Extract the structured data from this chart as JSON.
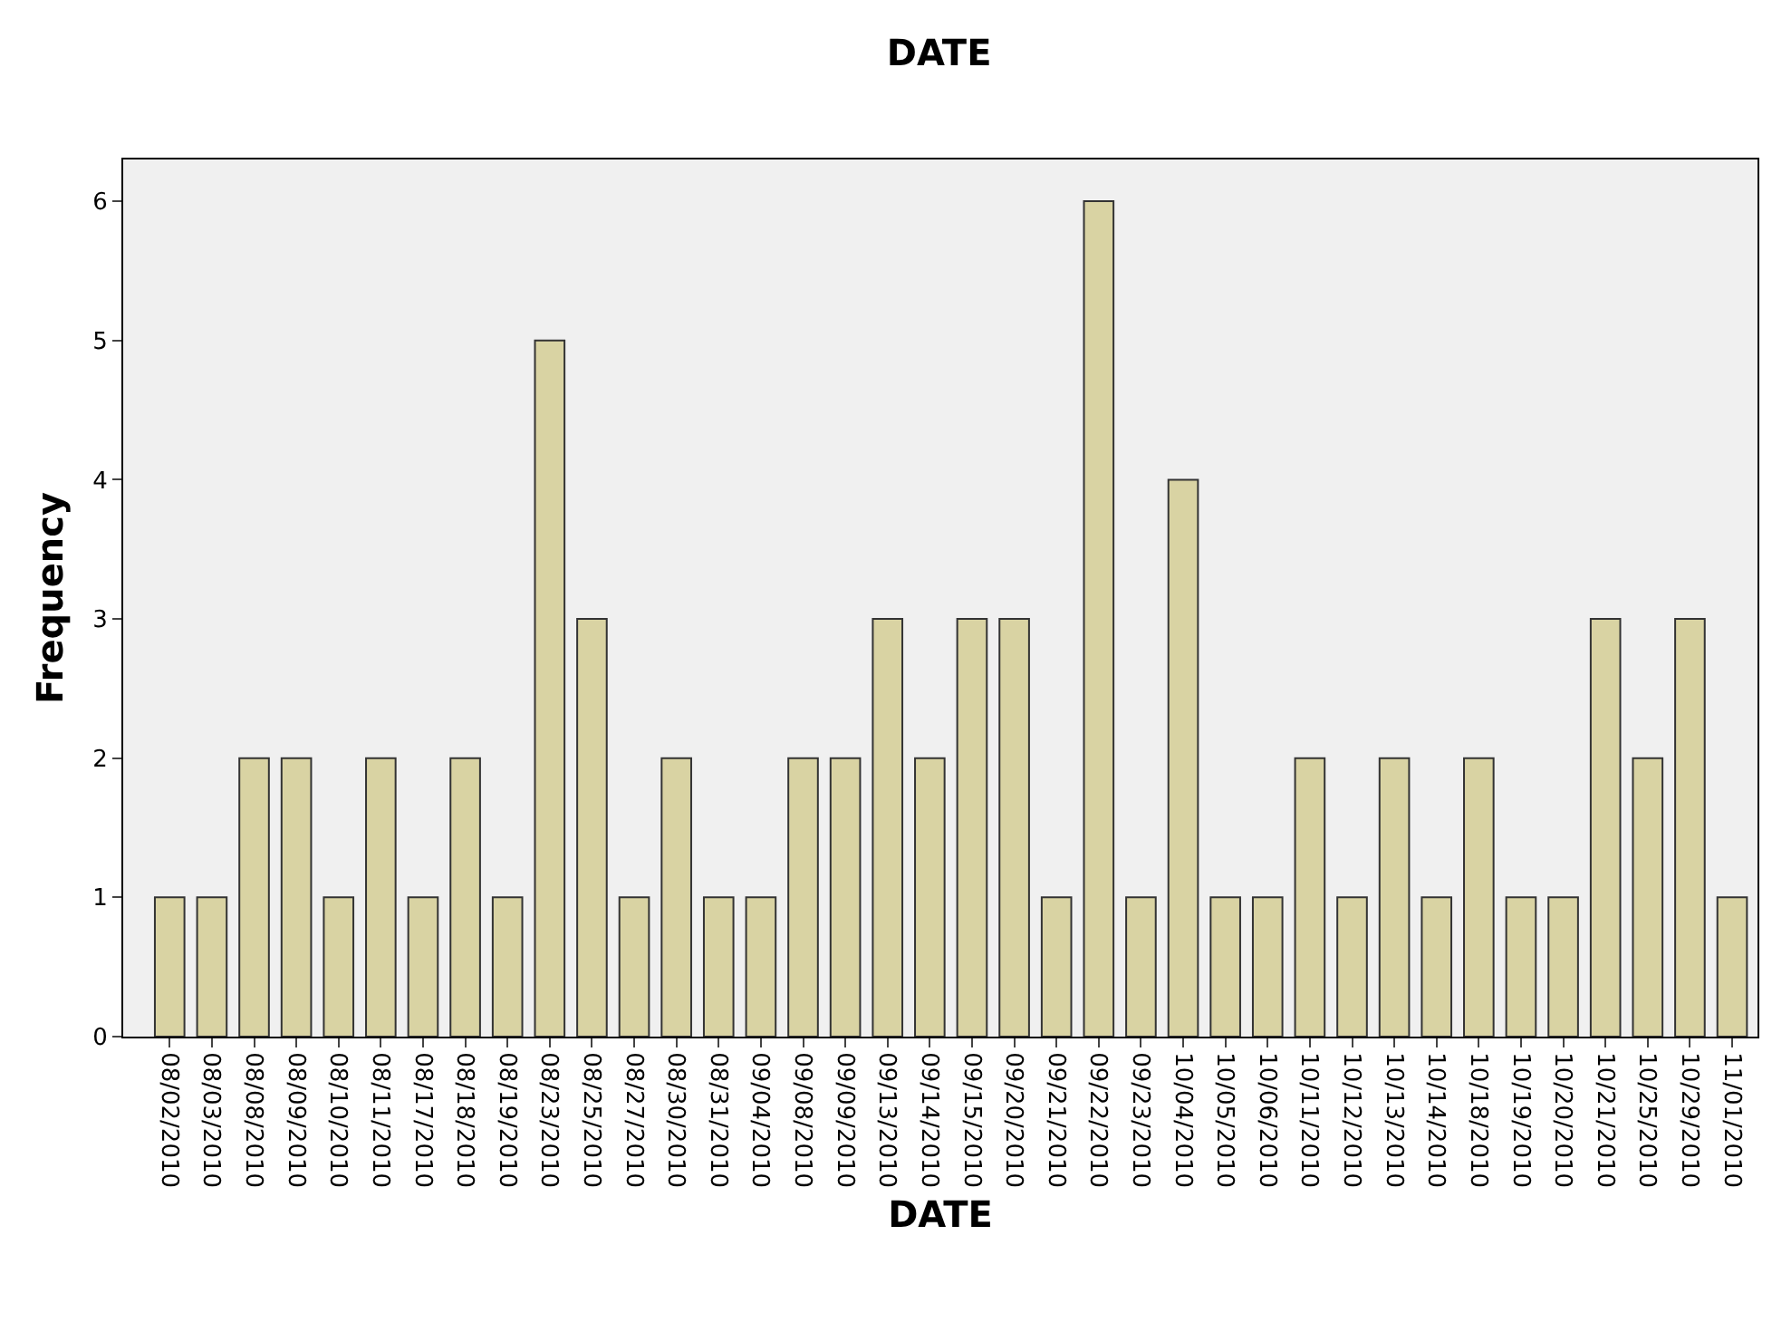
{
  "chart_data": {
    "type": "bar",
    "title": "DATE",
    "xlabel": "DATE",
    "ylabel": "Frequency",
    "categories": [
      "08/02/2010",
      "08/03/2010",
      "08/08/2010",
      "08/09/2010",
      "08/10/2010",
      "08/11/2010",
      "08/17/2010",
      "08/18/2010",
      "08/19/2010",
      "08/23/2010",
      "08/25/2010",
      "08/27/2010",
      "08/30/2010",
      "08/31/2010",
      "09/04/2010",
      "09/08/2010",
      "09/09/2010",
      "09/13/2010",
      "09/14/2010",
      "09/15/2010",
      "09/20/2010",
      "09/21/2010",
      "09/22/2010",
      "09/23/2010",
      "10/04/2010",
      "10/05/2010",
      "10/06/2010",
      "10/11/2010",
      "10/12/2010",
      "10/13/2010",
      "10/14/2010",
      "10/18/2010",
      "10/19/2010",
      "10/20/2010",
      "10/21/2010",
      "10/25/2010",
      "10/29/2010",
      "11/01/2010"
    ],
    "values": [
      1,
      1,
      2,
      2,
      1,
      2,
      1,
      2,
      1,
      5,
      3,
      1,
      2,
      1,
      1,
      2,
      2,
      3,
      2,
      3,
      3,
      1,
      6,
      1,
      4,
      1,
      1,
      2,
      1,
      2,
      1,
      2,
      1,
      1,
      3,
      2,
      3,
      1
    ],
    "color": "#d9d3a3",
    "ylim": [
      0,
      6.3
    ],
    "yticks": [
      0,
      1,
      2,
      3,
      4,
      5,
      6
    ],
    "grid": false
  }
}
